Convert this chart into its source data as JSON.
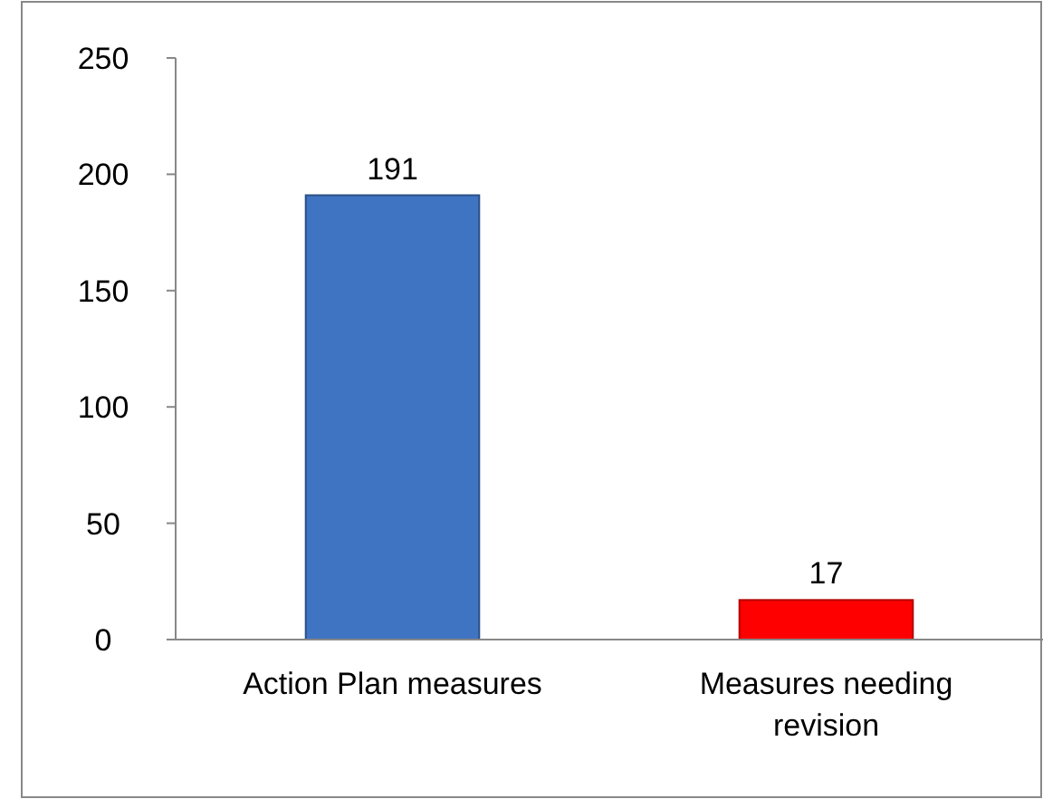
{
  "chart_data": {
    "type": "bar",
    "categories": [
      "Action Plan measures",
      "Measures needing revision"
    ],
    "values": [
      191,
      17
    ],
    "colors": [
      "#3f74c2",
      "#ff0000"
    ],
    "ylim": [
      0,
      250
    ],
    "yticks": [
      0,
      50,
      100,
      150,
      200,
      250
    ],
    "grid": false,
    "data_labels": true
  }
}
